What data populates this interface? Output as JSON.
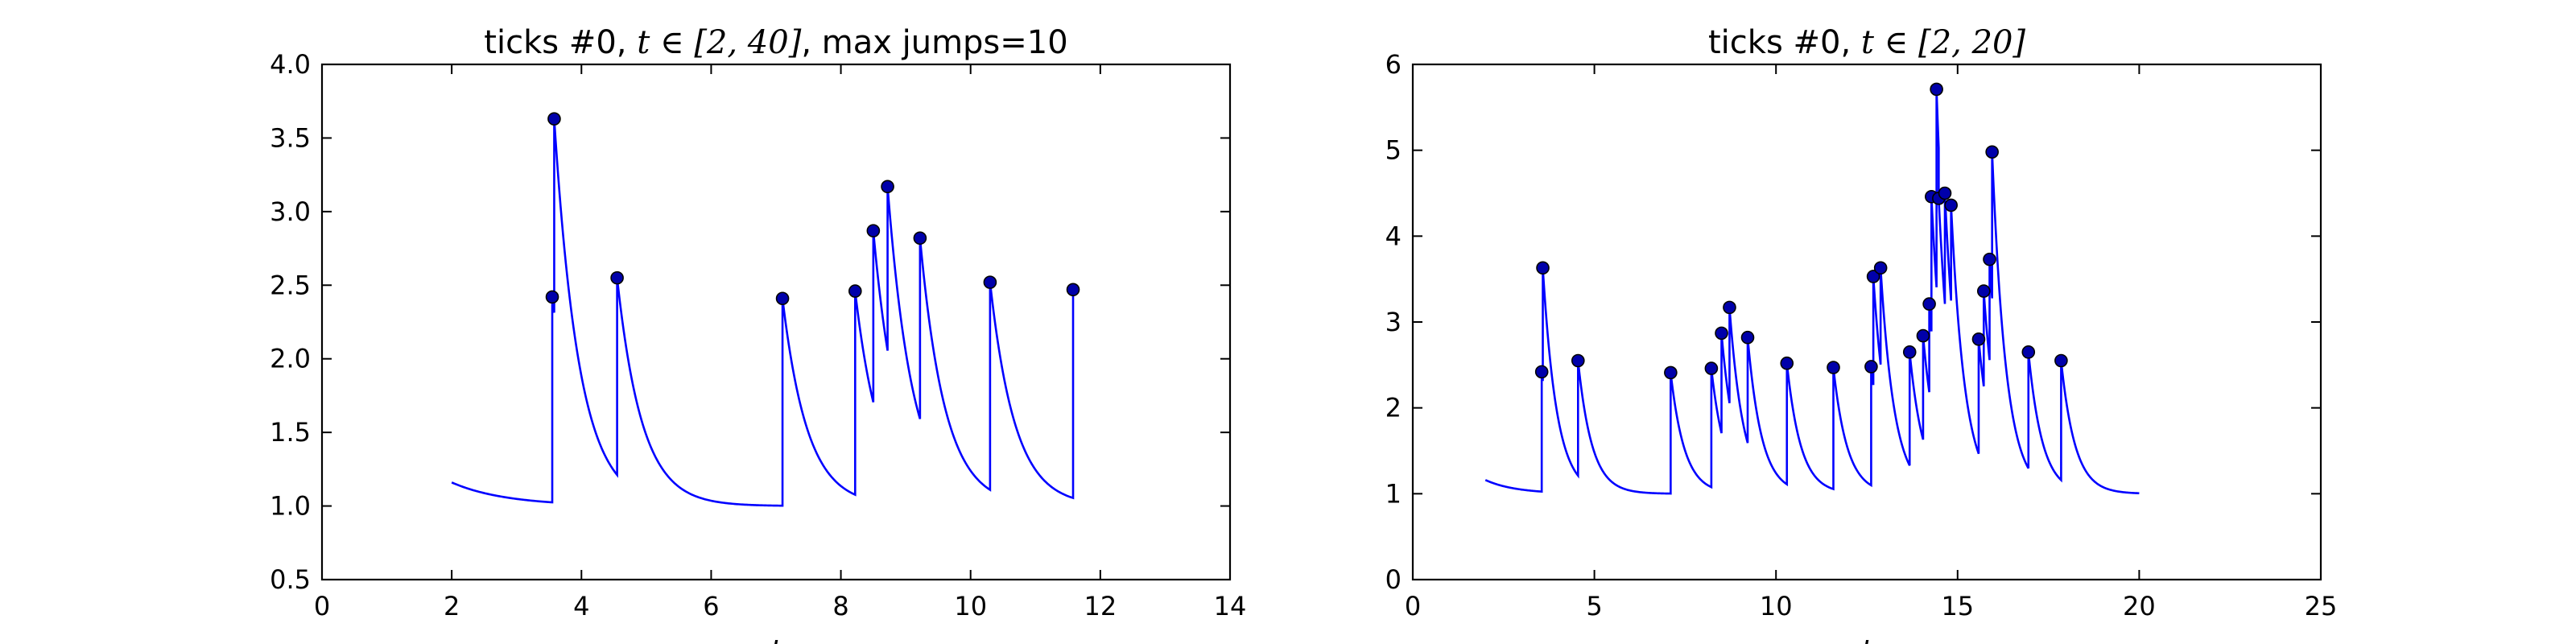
{
  "chart_data": [
    {
      "type": "line",
      "title": "ticks #0, t ∈ [2, 40], max jumps=10",
      "title_parts": {
        "pre": "ticks #0, ",
        "math": "t ∈ [2, 40]",
        "post": ", max jumps=10"
      },
      "xlabel": "t",
      "ylabel": "",
      "xlim": [
        0,
        14
      ],
      "ylim": [
        0.5,
        4.0
      ],
      "xticks": [
        0,
        2,
        4,
        6,
        8,
        10,
        12,
        14
      ],
      "xtick_labels": [
        "0",
        "2",
        "4",
        "6",
        "8",
        "10",
        "12",
        "14"
      ],
      "yticks": [
        0.5,
        1.0,
        1.5,
        2.0,
        2.5,
        3.0,
        3.5,
        4.0
      ],
      "ytick_labels": [
        "0.5",
        "1.0",
        "1.5",
        "2.0",
        "2.5",
        "3.0",
        "3.5",
        "4.0"
      ],
      "grid": false,
      "line_color": "#0000ff",
      "marker_color": "#0000aa",
      "curve": {
        "start_x": 2.0,
        "start_y": 1.16,
        "end_x": 11.58,
        "baseline": 1.0,
        "amp": 0.16
      },
      "jumps": [
        {
          "x": 3.55,
          "y": 2.42
        },
        {
          "x": 3.58,
          "y": 3.63
        },
        {
          "x": 4.55,
          "y": 2.55
        },
        {
          "x": 7.1,
          "y": 2.41
        },
        {
          "x": 8.22,
          "y": 2.46
        },
        {
          "x": 8.5,
          "y": 2.87
        },
        {
          "x": 8.72,
          "y": 3.17
        },
        {
          "x": 9.22,
          "y": 2.82
        },
        {
          "x": 10.3,
          "y": 2.52
        },
        {
          "x": 11.58,
          "y": 2.47
        }
      ]
    },
    {
      "type": "line",
      "title": "ticks #0, t ∈ [2, 20]",
      "title_parts": {
        "pre": "ticks #0, ",
        "math": "t ∈ [2, 20]",
        "post": ""
      },
      "xlabel": "t",
      "ylabel": "",
      "xlim": [
        0,
        25
      ],
      "ylim": [
        0,
        6
      ],
      "xticks": [
        0,
        5,
        10,
        15,
        20,
        25
      ],
      "xtick_labels": [
        "0",
        "5",
        "10",
        "15",
        "20",
        "25"
      ],
      "yticks": [
        0,
        1,
        2,
        3,
        4,
        5,
        6
      ],
      "ytick_labels": [
        "0",
        "1",
        "2",
        "3",
        "4",
        "5",
        "6"
      ],
      "grid": false,
      "line_color": "#0000ff",
      "marker_color": "#0000aa",
      "curve": {
        "start_x": 2.0,
        "start_y": 1.16,
        "end_x": 20.0,
        "baseline": 1.0,
        "amp": 0.16
      },
      "jumps": [
        {
          "x": 3.55,
          "y": 2.42
        },
        {
          "x": 3.58,
          "y": 3.63
        },
        {
          "x": 4.55,
          "y": 2.55
        },
        {
          "x": 7.1,
          "y": 2.41
        },
        {
          "x": 8.22,
          "y": 2.46
        },
        {
          "x": 8.5,
          "y": 2.87
        },
        {
          "x": 8.72,
          "y": 3.17
        },
        {
          "x": 9.22,
          "y": 2.82
        },
        {
          "x": 10.3,
          "y": 2.52
        },
        {
          "x": 11.58,
          "y": 2.47
        },
        {
          "x": 12.62,
          "y": 2.48
        },
        {
          "x": 12.68,
          "y": 3.53
        },
        {
          "x": 12.88,
          "y": 3.63
        },
        {
          "x": 13.68,
          "y": 2.65
        },
        {
          "x": 14.05,
          "y": 2.84
        },
        {
          "x": 14.22,
          "y": 3.21
        },
        {
          "x": 14.28,
          "y": 4.46
        },
        {
          "x": 14.42,
          "y": 5.71
        },
        {
          "x": 14.48,
          "y": 4.44
        },
        {
          "x": 14.65,
          "y": 4.5
        },
        {
          "x": 14.82,
          "y": 4.36
        },
        {
          "x": 15.58,
          "y": 2.8
        },
        {
          "x": 15.72,
          "y": 3.36
        },
        {
          "x": 15.88,
          "y": 3.73
        },
        {
          "x": 15.95,
          "y": 4.98
        },
        {
          "x": 16.95,
          "y": 2.65
        },
        {
          "x": 17.85,
          "y": 2.55
        }
      ]
    }
  ]
}
